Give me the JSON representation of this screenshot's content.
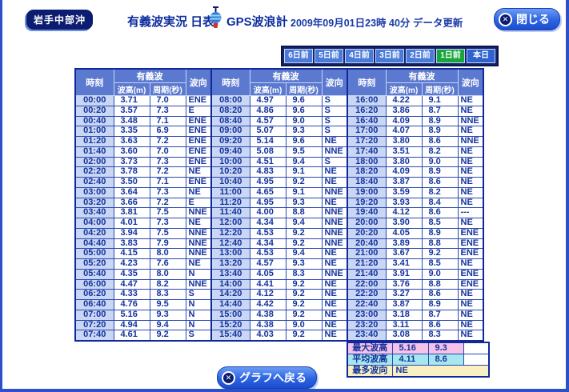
{
  "page": {
    "station": "岩手中部沖",
    "title": "有義波実況 日表",
    "instrument": "GPS波浪計",
    "updated": "2009年09月01日23時 40分 データ更新",
    "close_label": "閉じる",
    "back_label": "グラフへ戻る"
  },
  "day_tabs": [
    {
      "label": "6日前",
      "state": "normal"
    },
    {
      "label": "5日前",
      "state": "normal"
    },
    {
      "label": "4日前",
      "state": "normal"
    },
    {
      "label": "3日前",
      "state": "normal"
    },
    {
      "label": "2日前",
      "state": "normal"
    },
    {
      "label": "1日前",
      "state": "selected"
    },
    {
      "label": "本日",
      "state": "today"
    }
  ],
  "table": {
    "headers": {
      "time": "時刻",
      "wave": "有義波",
      "height": "波高(m)",
      "period": "周期(秒)",
      "direction": "波向"
    },
    "groups": [
      {
        "rows": [
          [
            "00:00",
            "3.71",
            "7.0",
            "ENE"
          ],
          [
            "00:20",
            "3.57",
            "7.3",
            "E"
          ],
          [
            "00:40",
            "3.48",
            "7.1",
            "ENE"
          ],
          [
            "01:00",
            "3.35",
            "6.9",
            "ENE"
          ],
          [
            "01:20",
            "3.63",
            "7.2",
            "ENE"
          ],
          [
            "01:40",
            "3.60",
            "7.0",
            "ENE"
          ],
          [
            "02:00",
            "3.73",
            "7.3",
            "ENE"
          ],
          [
            "02:20",
            "3.78",
            "7.2",
            "NE"
          ],
          [
            "02:40",
            "3.50",
            "7.1",
            "ENE"
          ],
          [
            "03:00",
            "3.64",
            "7.3",
            "NE"
          ],
          [
            "03:20",
            "3.66",
            "7.2",
            "E"
          ],
          [
            "03:40",
            "3.81",
            "7.5",
            "NNE"
          ],
          [
            "04:00",
            "4.01",
            "7.3",
            "NE"
          ],
          [
            "04:20",
            "3.94",
            "7.5",
            "NNE"
          ],
          [
            "04:40",
            "3.83",
            "7.9",
            "NNE"
          ],
          [
            "05:00",
            "4.15",
            "8.0",
            "NNE"
          ],
          [
            "05:20",
            "4.23",
            "7.6",
            "NE"
          ],
          [
            "05:40",
            "4.35",
            "8.0",
            "N"
          ],
          [
            "06:00",
            "4.47",
            "8.2",
            "NNE"
          ],
          [
            "06:20",
            "4.33",
            "8.3",
            "S"
          ],
          [
            "06:40",
            "4.76",
            "9.5",
            "N"
          ],
          [
            "07:00",
            "5.16",
            "9.3",
            "N"
          ],
          [
            "07:20",
            "4.94",
            "9.4",
            "N"
          ],
          [
            "07:40",
            "4.61",
            "9.2",
            "S"
          ]
        ]
      },
      {
        "rows": [
          [
            "08:00",
            "4.97",
            "9.6",
            "S"
          ],
          [
            "08:20",
            "4.86",
            "9.6",
            "S"
          ],
          [
            "08:40",
            "4.57",
            "9.0",
            "S"
          ],
          [
            "09:00",
            "5.07",
            "9.3",
            "S"
          ],
          [
            "09:20",
            "5.14",
            "9.6",
            "NE"
          ],
          [
            "09:40",
            "5.08",
            "9.5",
            "NNE"
          ],
          [
            "10:00",
            "4.51",
            "9.4",
            "S"
          ],
          [
            "10:20",
            "4.83",
            "9.1",
            "NE"
          ],
          [
            "10:40",
            "4.95",
            "9.2",
            "NE"
          ],
          [
            "11:00",
            "4.65",
            "9.1",
            "NNE"
          ],
          [
            "11:20",
            "4.95",
            "9.3",
            "NE"
          ],
          [
            "11:40",
            "4.00",
            "8.8",
            "NNE"
          ],
          [
            "12:00",
            "4.34",
            "9.4",
            "NNE"
          ],
          [
            "12:20",
            "4.53",
            "9.2",
            "NNE"
          ],
          [
            "12:40",
            "4.34",
            "9.2",
            "NNE"
          ],
          [
            "13:00",
            "4.53",
            "9.4",
            "NE"
          ],
          [
            "13:20",
            "4.57",
            "9.3",
            "NE"
          ],
          [
            "13:40",
            "4.05",
            "8.3",
            "NNE"
          ],
          [
            "14:00",
            "4.41",
            "9.2",
            "NE"
          ],
          [
            "14:20",
            "4.12",
            "9.2",
            "NE"
          ],
          [
            "14:40",
            "4.42",
            "9.2",
            "NE"
          ],
          [
            "15:00",
            "4.38",
            "9.2",
            "NE"
          ],
          [
            "15:20",
            "4.38",
            "9.0",
            "NE"
          ],
          [
            "15:40",
            "4.03",
            "9.2",
            "NE"
          ]
        ]
      },
      {
        "rows": [
          [
            "16:00",
            "4.22",
            "9.1",
            "NE"
          ],
          [
            "16:20",
            "3.86",
            "8.7",
            "NE"
          ],
          [
            "16:40",
            "4.09",
            "8.9",
            "NNE"
          ],
          [
            "17:00",
            "4.07",
            "8.9",
            "NE"
          ],
          [
            "17:20",
            "3.80",
            "8.6",
            "NNE"
          ],
          [
            "17:40",
            "3.51",
            "8.2",
            "NE"
          ],
          [
            "18:00",
            "3.80",
            "9.0",
            "NE"
          ],
          [
            "18:20",
            "4.09",
            "8.9",
            "NE"
          ],
          [
            "18:40",
            "3.87",
            "8.6",
            "NE"
          ],
          [
            "19:00",
            "3.59",
            "8.2",
            "NE"
          ],
          [
            "19:20",
            "3.93",
            "8.4",
            "NE"
          ],
          [
            "19:40",
            "4.12",
            "8.6",
            "---"
          ],
          [
            "20:00",
            "3.90",
            "8.5",
            "NE"
          ],
          [
            "20:20",
            "4.05",
            "8.9",
            "ENE"
          ],
          [
            "20:40",
            "3.89",
            "8.8",
            "ENE"
          ],
          [
            "21:00",
            "3.67",
            "9.2",
            "ENE"
          ],
          [
            "21:20",
            "3.41",
            "8.5",
            "NE"
          ],
          [
            "21:40",
            "3.91",
            "9.0",
            "ENE"
          ],
          [
            "22:00",
            "3.76",
            "8.8",
            "ENE"
          ],
          [
            "22:20",
            "3.27",
            "8.6",
            "NE"
          ],
          [
            "22:40",
            "3.87",
            "8.9",
            "NE"
          ],
          [
            "23:00",
            "3.18",
            "8.7",
            "NE"
          ],
          [
            "23:20",
            "3.11",
            "8.6",
            "NE"
          ],
          [
            "23:40",
            "3.08",
            "8.3",
            "NE"
          ]
        ]
      }
    ]
  },
  "summary": {
    "max": {
      "label": "最大波高",
      "height": "5.16",
      "period": "9.3"
    },
    "avg": {
      "label": "平均波高",
      "height": "4.11",
      "period": "8.6"
    },
    "direction": {
      "label": "最多波向",
      "value": "NE"
    }
  },
  "colors": {
    "accent_navy": "#0c1c70",
    "table_header_bg": "#5b79cf",
    "time_cell_bg": "#c9d6f4",
    "cell_text": "#15339c",
    "tab_normal": "#4a7ad8",
    "tab_selected": "#18a53c",
    "tab_today": "#2f62cf",
    "summary_max_bg": "#f5c2e8",
    "summary_avg_bg": "#a5e6ef",
    "summary_dir_bg": "#f8f0c2",
    "button_blue": "#2c63e0"
  }
}
